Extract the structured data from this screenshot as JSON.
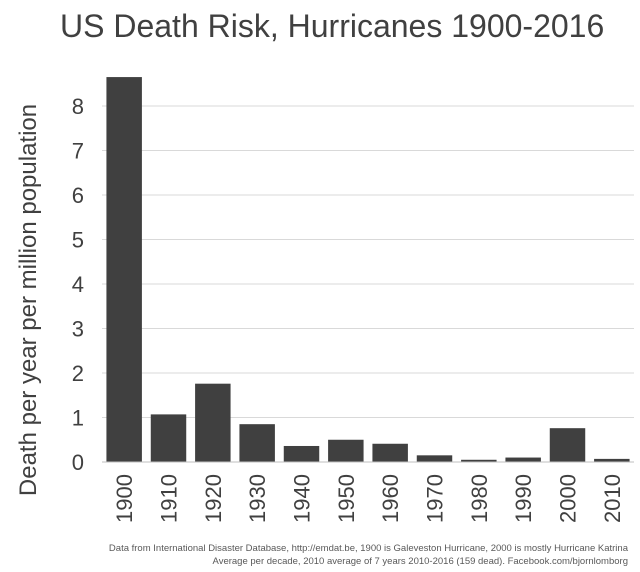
{
  "title": "US Death Risk, Hurricanes 1900-2016",
  "footnote": [
    "Data from International Disaster Database, http://emdat.be, 1900 is  Galeveston Hurricane, 2000 is mostly Hurricane Katrina",
    "Average per decade, 2010 average of 7 years 2010-2016 (159 dead). Facebook.com/bjornlomborg"
  ],
  "colors": {
    "bar": "#404040",
    "grid": "#d9d9d9",
    "text": "#404040"
  },
  "chart_data": {
    "type": "bar",
    "title": "US Death Risk, Hurricanes 1900-2016",
    "xlabel": "",
    "ylabel": "Death per year per million population",
    "categories": [
      "1900",
      "1910",
      "1920",
      "1930",
      "1940",
      "1950",
      "1960",
      "1970",
      "1980",
      "1990",
      "2000",
      "2010"
    ],
    "values": [
      8.65,
      1.07,
      1.76,
      0.85,
      0.36,
      0.5,
      0.41,
      0.15,
      0.05,
      0.1,
      0.76,
      0.07
    ],
    "ylim": [
      0,
      8.5
    ],
    "yticks": [
      0,
      1,
      2,
      3,
      4,
      5,
      6,
      7,
      8
    ],
    "grid": true,
    "legend": "none"
  }
}
